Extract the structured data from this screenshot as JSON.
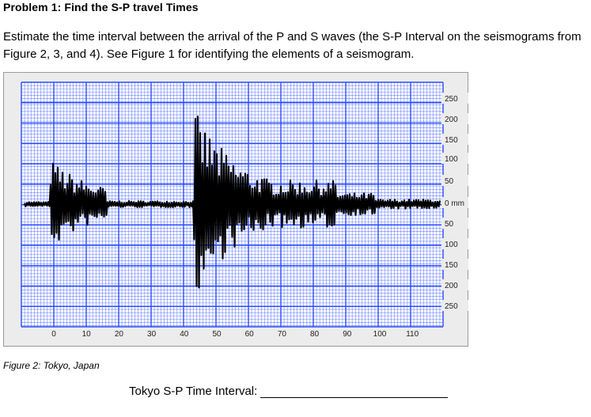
{
  "heading": "Problem 1: Find the S-P travel Times",
  "instructions": "Estimate the time interval between the arrival of the P and S waves (the S-P Interval on the seismograms from Figure 2, 3, and 4). See Figure 1 for identifying the elements of a seismogram.",
  "figure": {
    "caption": "Figure 2: Tokyo, Japan",
    "grid_color": "#2a4cff",
    "trace_color": "#000000",
    "amplitude_labels": [
      "250",
      "200",
      "150",
      "100",
      "50",
      "0 mm",
      "50",
      "100",
      "150",
      "200",
      "250"
    ],
    "time_labels": [
      "0",
      "10",
      "20",
      "30",
      "40",
      "50",
      "60",
      "70",
      "80",
      "90",
      "100",
      "110"
    ]
  },
  "answer": {
    "label": "Tokyo S-P Time Interval:"
  }
}
